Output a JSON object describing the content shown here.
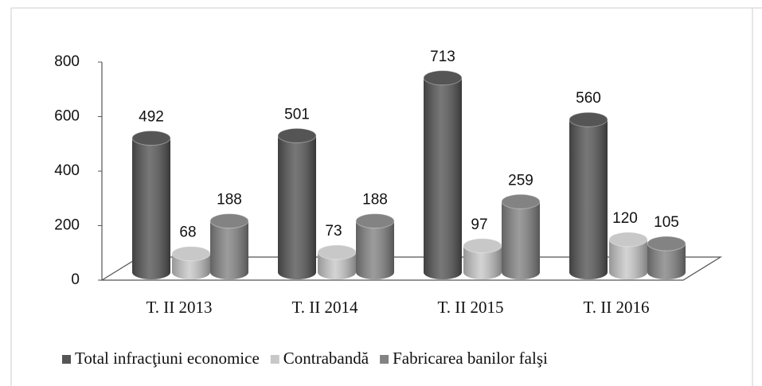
{
  "chart_data": {
    "type": "bar3d",
    "categories": [
      "T. II 2013",
      "T. II 2014",
      "T. II 2015",
      "T. II 2016"
    ],
    "series": [
      {
        "name": "Total infracţiuni economice",
        "color": "#555555",
        "values": [
          492,
          501,
          713,
          560
        ]
      },
      {
        "name": "Contrabandă",
        "color": "#c8c8c8",
        "values": [
          68,
          73,
          97,
          120
        ]
      },
      {
        "name": "Fabricarea banilor falşi",
        "color": "#838383",
        "values": [
          188,
          188,
          259,
          105
        ]
      }
    ],
    "ylim": [
      0,
      800
    ],
    "yticks": [
      0,
      200,
      400,
      600,
      800
    ],
    "legend": "bottom"
  }
}
